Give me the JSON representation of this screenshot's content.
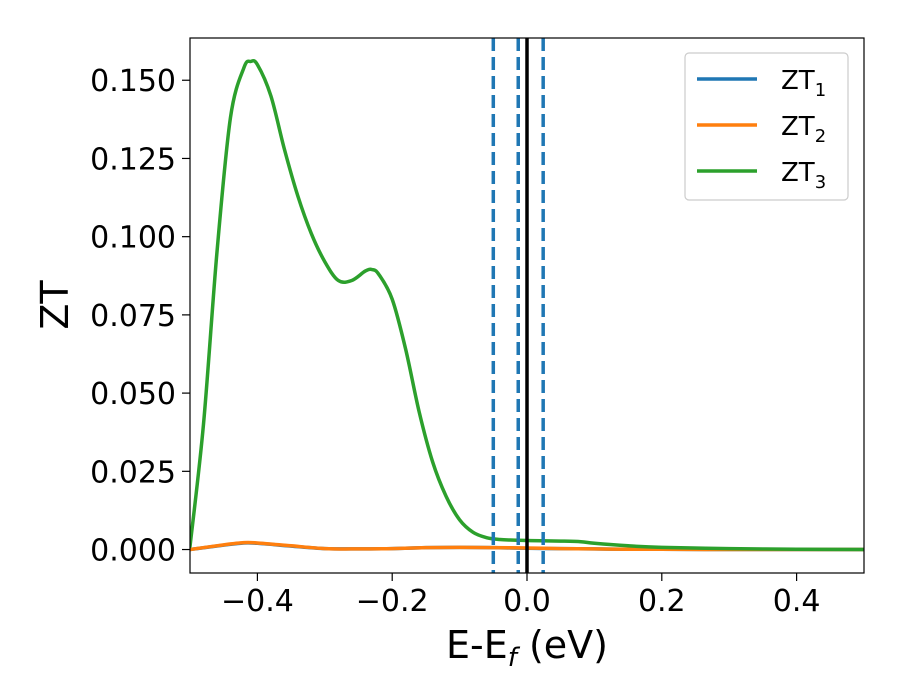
{
  "chart_data": {
    "type": "line",
    "title": "",
    "xlabel": {
      "main": "E-E",
      "sub": "f",
      "tail": " (eV)"
    },
    "ylabel": "ZT",
    "xlim": [
      -0.5,
      0.5
    ],
    "ylim": [
      -0.0075,
      0.1635
    ],
    "x_ticks": [
      -0.4,
      -0.2,
      0.0,
      0.2,
      0.4
    ],
    "x_tick_labels": [
      "−0.4",
      "−0.2",
      "0.0",
      "0.2",
      "0.4"
    ],
    "y_ticks": [
      0.0,
      0.025,
      0.05,
      0.075,
      0.1,
      0.125,
      0.15
    ],
    "y_tick_labels": [
      "0.000",
      "0.025",
      "0.050",
      "0.075",
      "0.100",
      "0.125",
      "0.150"
    ],
    "grid": false,
    "legend_position": "top-right",
    "series": [
      {
        "name": "ZT",
        "subscript": "1",
        "color": "#1f77b4",
        "x": [
          -0.5,
          -0.45,
          -0.42,
          -0.4,
          -0.35,
          -0.3,
          -0.25,
          -0.2,
          -0.15,
          -0.1,
          -0.05,
          0.0,
          0.05,
          0.1,
          0.15,
          0.2,
          0.3,
          0.4,
          0.5
        ],
        "y": [
          0.0,
          0.0014,
          0.0021,
          0.002,
          0.0011,
          0.0003,
          0.0002,
          0.0003,
          0.0006,
          0.0007,
          0.0006,
          0.0004,
          0.0003,
          0.0002,
          0.0001,
          0.0001,
          0.0,
          0.0,
          0.0
        ]
      },
      {
        "name": "ZT",
        "subscript": "2",
        "color": "#ff7f0e",
        "x": [
          -0.5,
          -0.45,
          -0.42,
          -0.4,
          -0.35,
          -0.3,
          -0.25,
          -0.2,
          -0.15,
          -0.1,
          -0.05,
          0.0,
          0.05,
          0.1,
          0.15,
          0.2,
          0.3,
          0.4,
          0.5
        ],
        "y": [
          0.0,
          0.0015,
          0.0022,
          0.0021,
          0.0012,
          0.0003,
          0.0002,
          0.0003,
          0.0006,
          0.0007,
          0.0006,
          0.0005,
          0.0003,
          0.0002,
          0.0001,
          0.0001,
          0.0,
          0.0,
          0.0
        ]
      },
      {
        "name": "ZT",
        "subscript": "3",
        "color": "#2ca02c",
        "x": [
          -0.5,
          -0.48,
          -0.46,
          -0.44,
          -0.42,
          -0.41,
          -0.4,
          -0.38,
          -0.36,
          -0.34,
          -0.32,
          -0.3,
          -0.28,
          -0.26,
          -0.24,
          -0.23,
          -0.22,
          -0.2,
          -0.18,
          -0.16,
          -0.14,
          -0.12,
          -0.1,
          -0.08,
          -0.06,
          -0.04,
          -0.02,
          0.0,
          0.02,
          0.05,
          0.08,
          0.1,
          0.15,
          0.2,
          0.3,
          0.4,
          0.5
        ],
        "y": [
          0.001,
          0.04,
          0.095,
          0.138,
          0.154,
          0.156,
          0.155,
          0.145,
          0.128,
          0.113,
          0.101,
          0.092,
          0.086,
          0.086,
          0.089,
          0.0895,
          0.088,
          0.08,
          0.064,
          0.044,
          0.028,
          0.017,
          0.0095,
          0.0055,
          0.0038,
          0.0032,
          0.003,
          0.0029,
          0.0028,
          0.0027,
          0.0025,
          0.002,
          0.0012,
          0.0007,
          0.0003,
          0.0001,
          0.0
        ]
      }
    ],
    "vlines": [
      {
        "x": -0.05,
        "style": "dashed",
        "color": "#1f77b4"
      },
      {
        "x": -0.013,
        "style": "dashed",
        "color": "#1f77b4"
      },
      {
        "x": 0.024,
        "style": "dashed",
        "color": "#1f77b4"
      },
      {
        "x": 0.0,
        "style": "solid",
        "color": "#000000"
      }
    ]
  }
}
